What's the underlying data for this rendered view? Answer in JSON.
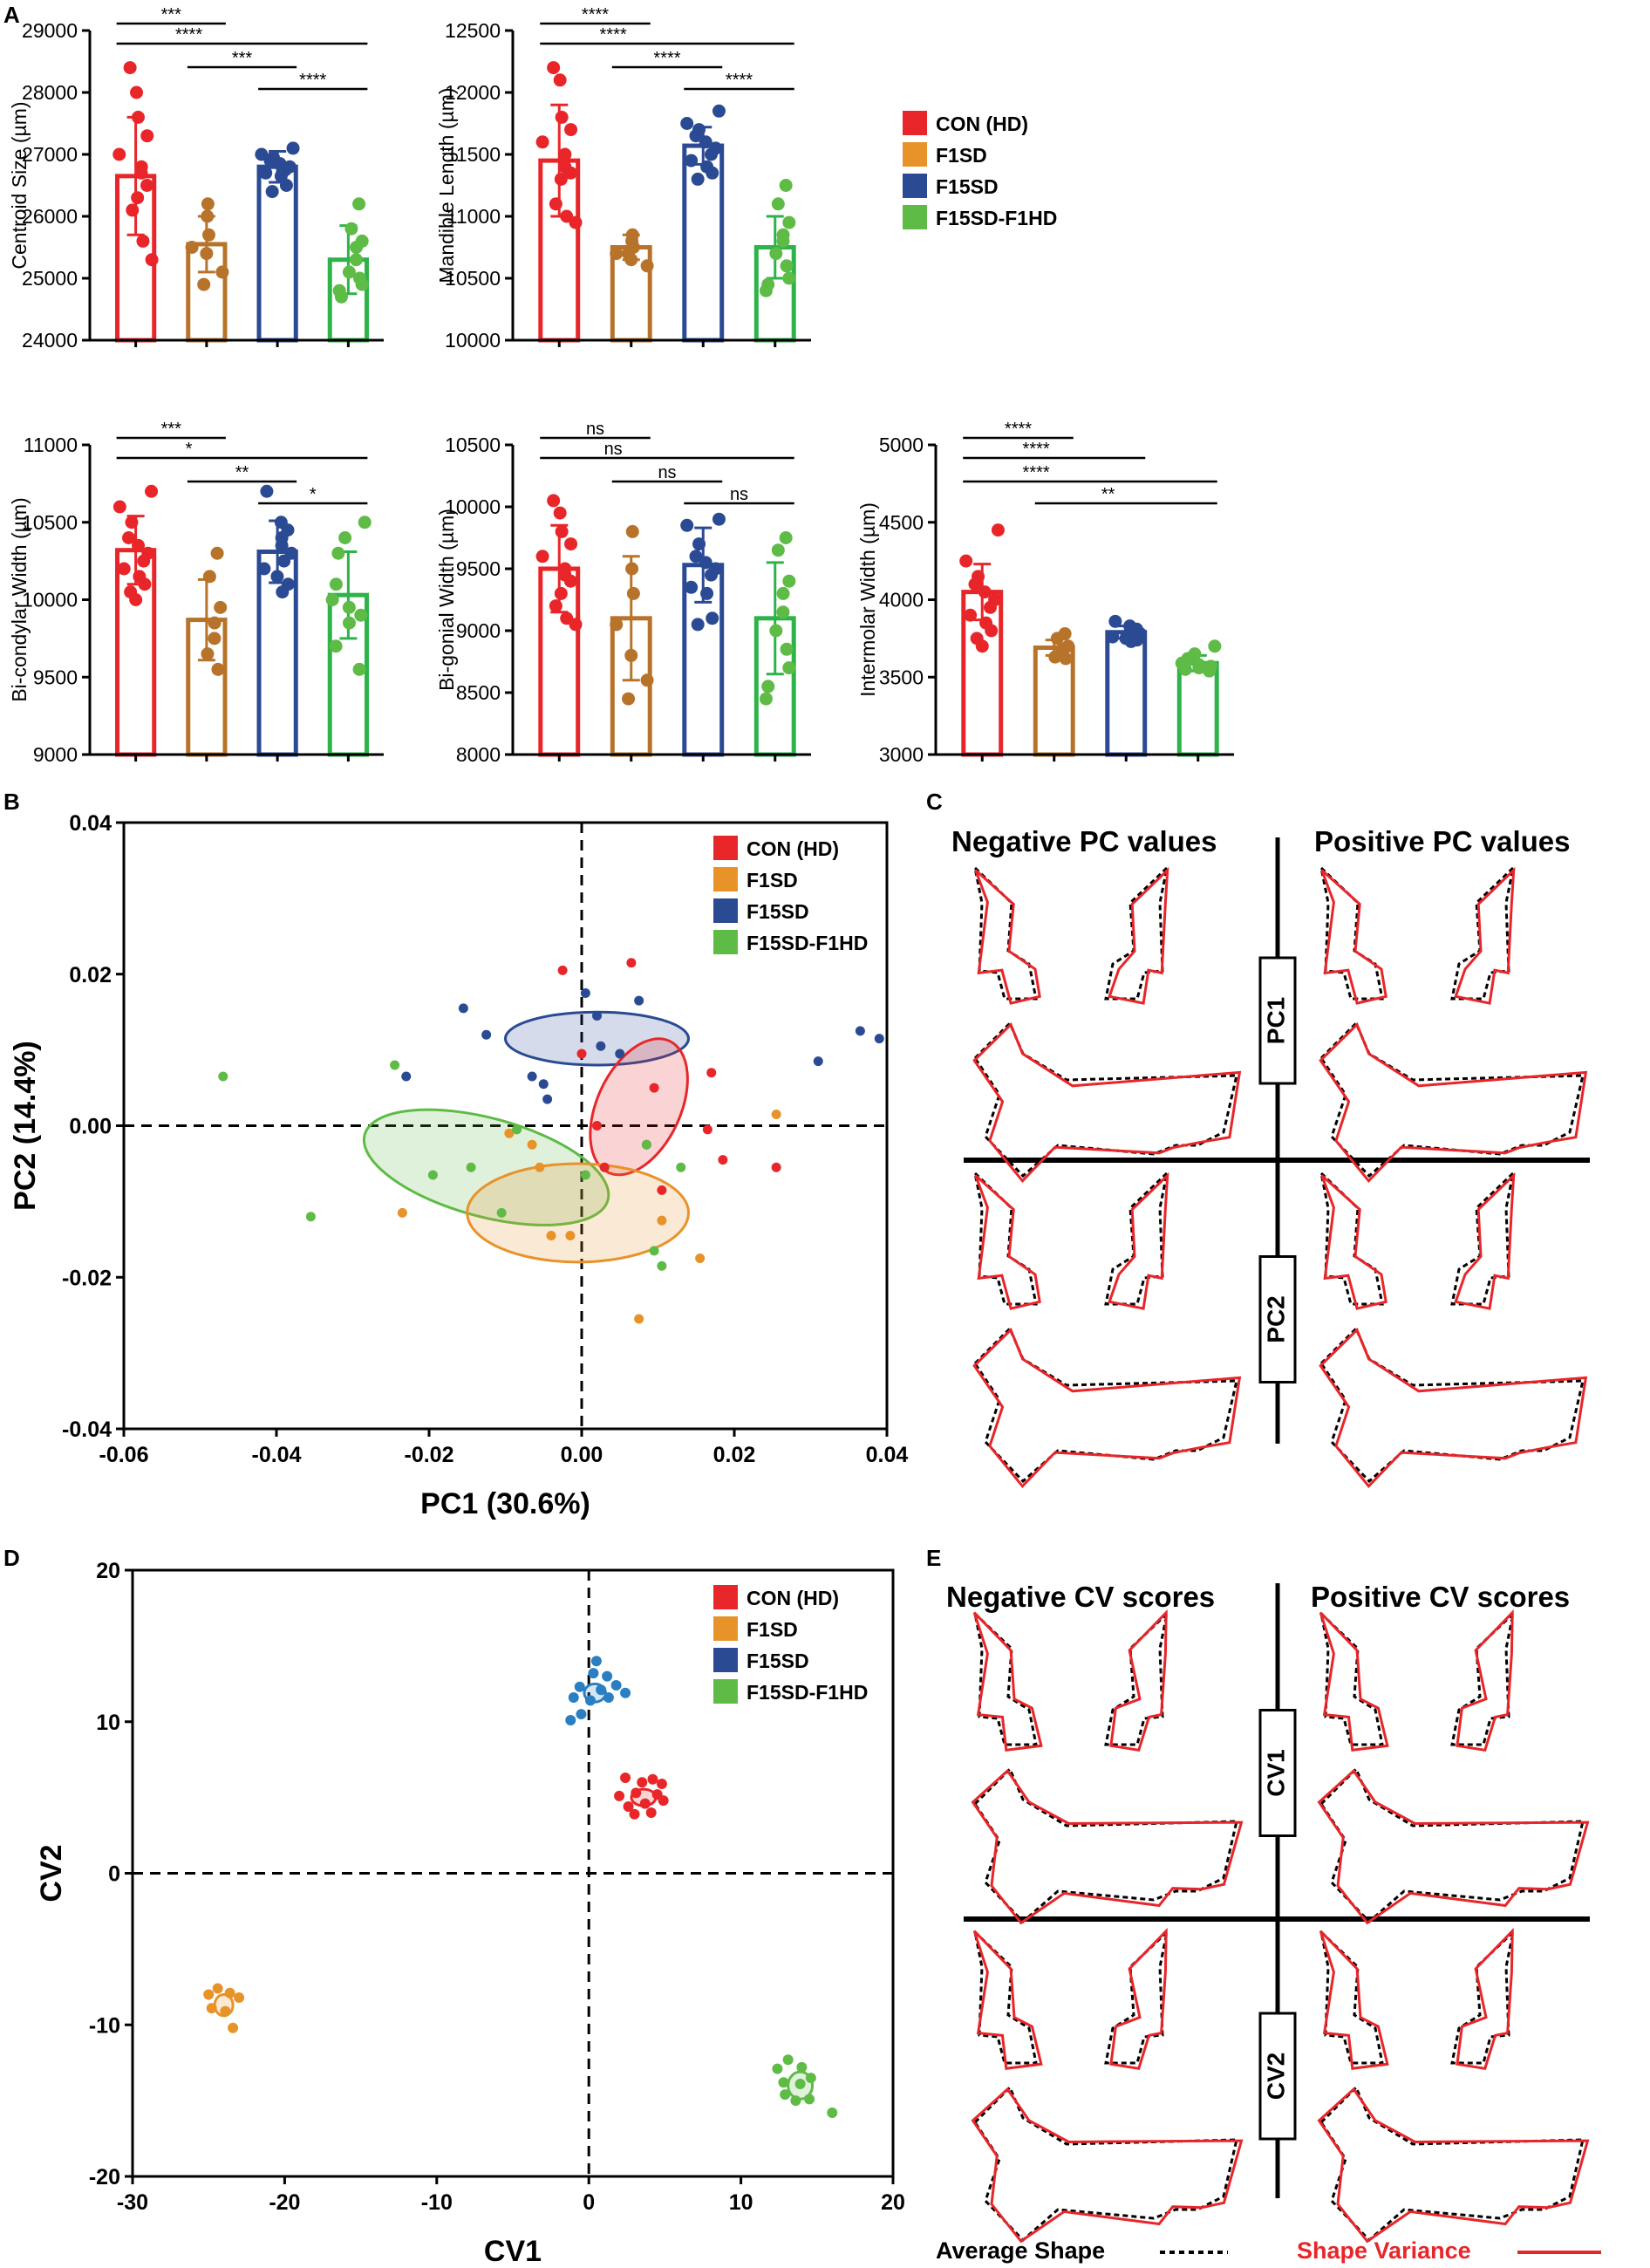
{
  "colors": {
    "con": "#e8262a",
    "f1sd": "#e8922a",
    "f15sd": "#2b4a94",
    "f15sdf1hd": "#5dbb46",
    "con_bar": "#e8262a",
    "f1sd_bar": "#b8732a",
    "f15sd_bar": "#2b4a94",
    "f15sdf1hd_bar": "#2db34a",
    "f15sd_cva": "#2a7fc2",
    "variance": "#e8262a"
  },
  "panel_labels": {
    "a": "A",
    "b": "B",
    "c": "C",
    "d": "D",
    "e": "E"
  },
  "legend": {
    "entries": [
      {
        "key": "con",
        "label": "CON (HD)"
      },
      {
        "key": "f1sd",
        "label": "F1SD"
      },
      {
        "key": "f15sd",
        "label": "F15SD"
      },
      {
        "key": "f15sdf1hd",
        "label": "F15SD-F1HD"
      }
    ]
  },
  "shape_panels": {
    "pc": {
      "neg_header": "Negative PC values",
      "pos_header": "Positive PC values",
      "row1": "PC1",
      "row2": "PC2"
    },
    "cv": {
      "neg_header": "Negative CV scores",
      "pos_header": "Positive CV scores",
      "row1": "CV1",
      "row2": "CV2"
    },
    "footer_average": "Average Shape",
    "footer_variance": "Shape Variance"
  },
  "chart_data": [
    {
      "type": "bar",
      "id": "centroid",
      "ylabel": "Centroid Size (µm)",
      "ylim": [
        24000,
        29000
      ],
      "yticks": [
        24000,
        25000,
        26000,
        27000,
        28000,
        29000
      ],
      "categories": [
        "CON (HD)",
        "F1SD",
        "F15SD",
        "F15SD-F1HD"
      ],
      "values": [
        26650,
        25550,
        26800,
        25300
      ],
      "sd": [
        950,
        450,
        250,
        550
      ],
      "points": [
        [
          28400,
          28000,
          27600,
          27300,
          27000,
          26800,
          26700,
          26500,
          26300,
          26100,
          25600,
          25300
        ],
        [
          26200,
          26000,
          25700,
          25500,
          25400,
          25100,
          24900
        ],
        [
          27100,
          27000,
          26950,
          26900,
          26850,
          26800,
          26750,
          26700,
          26650,
          26500,
          26400
        ],
        [
          26200,
          25800,
          25600,
          25500,
          25300,
          25100,
          25000,
          24900,
          24800,
          24700
        ]
      ],
      "significance": [
        {
          "from": 0,
          "to": 1,
          "label": "***"
        },
        {
          "from": 0,
          "to": 3,
          "label": "****"
        },
        {
          "from": 1,
          "to": 2,
          "label": "***"
        },
        {
          "from": 2,
          "to": 3,
          "label": "****"
        }
      ]
    },
    {
      "type": "bar",
      "id": "mandible",
      "ylabel": "Mandible Length (µm)",
      "ylim": [
        10000,
        12500
      ],
      "yticks": [
        10000,
        10500,
        11000,
        11500,
        12000,
        12500
      ],
      "categories": [
        "CON (HD)",
        "F1SD",
        "F15SD",
        "F15SD-F1HD"
      ],
      "values": [
        11450,
        10750,
        11570,
        10750
      ],
      "sd": [
        450,
        100,
        150,
        250
      ],
      "points": [
        [
          12200,
          12100,
          11800,
          11700,
          11600,
          11500,
          11400,
          11350,
          11300,
          11100,
          11000,
          10950
        ],
        [
          10850,
          10800,
          10750,
          10700,
          10650,
          10600,
          10700
        ],
        [
          11850,
          11750,
          11700,
          11650,
          11600,
          11550,
          11500,
          11450,
          11400,
          11350,
          11300
        ],
        [
          11250,
          11100,
          10950,
          10850,
          10800,
          10700,
          10600,
          10500,
          10400,
          10450
        ]
      ],
      "significance": [
        {
          "from": 0,
          "to": 1,
          "label": "****"
        },
        {
          "from": 0,
          "to": 3,
          "label": "****"
        },
        {
          "from": 1,
          "to": 2,
          "label": "****"
        },
        {
          "from": 2,
          "to": 3,
          "label": "****"
        }
      ]
    },
    {
      "type": "bar",
      "id": "bicondylar",
      "ylabel": "Bi-condylar Width (µm)",
      "ylim": [
        9000,
        11000
      ],
      "yticks": [
        9000,
        9500,
        10000,
        10500,
        11000
      ],
      "categories": [
        "CON (HD)",
        "F1SD",
        "F15SD",
        "F15SD-F1HD"
      ],
      "values": [
        10320,
        9870,
        10310,
        10030
      ],
      "sd": [
        220,
        260,
        200,
        280
      ],
      "points": [
        [
          10700,
          10600,
          10500,
          10400,
          10350,
          10300,
          10250,
          10200,
          10150,
          10100,
          10050,
          10000
        ],
        [
          10300,
          10150,
          9950,
          9850,
          9750,
          9650,
          9550
        ],
        [
          10700,
          10500,
          10450,
          10400,
          10350,
          10300,
          10250,
          10200,
          10150,
          10100,
          10050
        ],
        [
          10500,
          10400,
          10300,
          10100,
          10000,
          9950,
          9900,
          9850,
          9700,
          9550
        ]
      ],
      "significance": [
        {
          "from": 0,
          "to": 1,
          "label": "***"
        },
        {
          "from": 0,
          "to": 3,
          "label": "*"
        },
        {
          "from": 1,
          "to": 2,
          "label": "**"
        },
        {
          "from": 2,
          "to": 3,
          "label": "*"
        }
      ]
    },
    {
      "type": "bar",
      "id": "bigonial",
      "ylabel": "Bi-gonial Width (µm)",
      "ylim": [
        8000,
        10500
      ],
      "yticks": [
        8000,
        8500,
        9000,
        9500,
        10000,
        10500
      ],
      "categories": [
        "CON (HD)",
        "F1SD",
        "F15SD",
        "F15SD-F1HD"
      ],
      "values": [
        9500,
        9100,
        9530,
        9100
      ],
      "sd": [
        350,
        500,
        300,
        450
      ],
      "points": [
        [
          10050,
          9950,
          9800,
          9700,
          9600,
          9500,
          9450,
          9400,
          9300,
          9200,
          9100,
          9050
        ],
        [
          9800,
          9500,
          9300,
          9050,
          8800,
          8600,
          8450
        ],
        [
          9900,
          9850,
          9700,
          9600,
          9550,
          9500,
          9450,
          9350,
          9300,
          9100,
          9050
        ],
        [
          9750,
          9650,
          9400,
          9300,
          9150,
          9000,
          8850,
          8700,
          8450,
          8550
        ]
      ],
      "significance": [
        {
          "from": 0,
          "to": 1,
          "label": "ns"
        },
        {
          "from": 0,
          "to": 3,
          "label": "ns"
        },
        {
          "from": 1,
          "to": 2,
          "label": "ns"
        },
        {
          "from": 2,
          "to": 3,
          "label": "ns"
        }
      ]
    },
    {
      "type": "bar",
      "id": "intermolar",
      "ylabel": "Intermolar Width (µm)",
      "ylim": [
        3000,
        5000
      ],
      "yticks": [
        3000,
        3500,
        4000,
        4500,
        5000
      ],
      "categories": [
        "CON (HD)",
        "F1SD",
        "F15SD",
        "F15SD-F1HD"
      ],
      "values": [
        4050,
        3690,
        3790,
        3590
      ],
      "sd": [
        180,
        50,
        40,
        50
      ],
      "points": [
        [
          4450,
          4250,
          4150,
          4100,
          4050,
          4000,
          3950,
          3900,
          3850,
          3800,
          3750,
          3700
        ],
        [
          3780,
          3750,
          3700,
          3680,
          3650,
          3630,
          3620
        ],
        [
          3860,
          3830,
          3810,
          3800,
          3790,
          3780,
          3770,
          3760,
          3750,
          3740,
          3730
        ],
        [
          3700,
          3650,
          3620,
          3600,
          3590,
          3580,
          3570,
          3560,
          3550,
          3540
        ]
      ],
      "significance": [
        {
          "from": 0,
          "to": 1,
          "label": "****"
        },
        {
          "from": 0,
          "to": 2,
          "label": "****"
        },
        {
          "from": 0,
          "to": 3,
          "label": "****"
        },
        {
          "from": 1,
          "to": 3,
          "label": "**"
        }
      ]
    },
    {
      "type": "scatter",
      "id": "pca",
      "xlabel": "PC1 (30.6%)",
      "ylabel": "PC2 (14.4%)",
      "xlim": [
        -0.06,
        0.04
      ],
      "ylim": [
        -0.04,
        0.04
      ],
      "xticks": [
        -0.06,
        -0.04,
        -0.02,
        0.0,
        0.02,
        0.04
      ],
      "yticks": [
        -0.04,
        -0.02,
        0.0,
        0.02,
        0.04
      ],
      "xtick_labels": [
        "-0.06",
        "-0.04",
        "-0.02",
        "0.00",
        "0.02",
        "0.04"
      ],
      "ytick_labels": [
        "-0.04",
        "-0.02",
        "0.00",
        "0.02",
        "0.04"
      ],
      "series": [
        {
          "key": "con",
          "name": "CON (HD)",
          "points": [
            [
              -0.0025,
              0.0205
            ],
            [
              0.0065,
              0.0215
            ],
            [
              0.0,
              0.0095
            ],
            [
              0.002,
              0.0
            ],
            [
              0.003,
              -0.0055
            ],
            [
              0.0085,
              -0.0025
            ],
            [
              0.0095,
              0.005
            ],
            [
              0.017,
              0.007
            ],
            [
              0.0165,
              -0.0005
            ],
            [
              0.0185,
              -0.0045
            ],
            [
              0.0105,
              -0.0085
            ],
            [
              0.0255,
              -0.0055
            ]
          ]
        },
        {
          "key": "f1sd",
          "name": "F1SD",
          "points": [
            [
              -0.0235,
              -0.0115
            ],
            [
              -0.0055,
              -0.0055
            ],
            [
              -0.004,
              -0.0145
            ],
            [
              -0.0015,
              -0.0145
            ],
            [
              0.0105,
              -0.0125
            ],
            [
              0.0075,
              -0.0255
            ],
            [
              0.0155,
              -0.0175
            ],
            [
              0.0255,
              0.0015
            ],
            [
              -0.0065,
              -0.0025
            ],
            [
              -0.0095,
              -0.001
            ]
          ]
        },
        {
          "key": "f15sd",
          "name": "F15SD",
          "points": [
            [
              -0.0155,
              0.0155
            ],
            [
              0.0005,
              0.0175
            ],
            [
              0.002,
              0.0145
            ],
            [
              0.0075,
              0.0165
            ],
            [
              -0.0125,
              0.012
            ],
            [
              0.005,
              0.0095
            ],
            [
              0.0025,
              0.0105
            ],
            [
              -0.0065,
              0.0065
            ],
            [
              -0.005,
              0.0055
            ],
            [
              -0.0045,
              0.0035
            ],
            [
              -0.023,
              0.0065
            ],
            [
              0.031,
              0.0085
            ],
            [
              0.0365,
              0.0125
            ],
            [
              0.039,
              0.0115
            ]
          ]
        },
        {
          "key": "f15sdf1hd",
          "name": "F15SD-F1HD",
          "points": [
            [
              -0.047,
              0.0065
            ],
            [
              -0.0355,
              -0.012
            ],
            [
              -0.0245,
              0.008
            ],
            [
              -0.0195,
              -0.0065
            ],
            [
              -0.0145,
              -0.0055
            ],
            [
              -0.0105,
              -0.0115
            ],
            [
              -0.0085,
              -0.0005
            ],
            [
              0.0005,
              -0.0065
            ],
            [
              0.0085,
              -0.0025
            ],
            [
              0.0095,
              -0.0165
            ],
            [
              0.0105,
              -0.0185
            ],
            [
              0.013,
              -0.0055
            ]
          ]
        }
      ],
      "ellipses": [
        {
          "key": "f15sd",
          "cx": 0.002,
          "cy": 0.0115,
          "rx": 0.012,
          "ry": 0.0035,
          "angle": 0
        },
        {
          "key": "con",
          "cx": 0.0075,
          "cy": 0.0025,
          "rx": 0.0095,
          "ry": 0.0055,
          "angle": 65
        },
        {
          "key": "f15sdf1hd",
          "cx": -0.0125,
          "cy": -0.0055,
          "rx": 0.0165,
          "ry": 0.0065,
          "angle": -15
        },
        {
          "key": "f1sd",
          "cx": -0.0005,
          "cy": -0.0115,
          "rx": 0.0145,
          "ry": 0.0065,
          "angle": 0
        }
      ]
    },
    {
      "type": "scatter",
      "id": "cva",
      "xlabel": "CV1",
      "ylabel": "CV2",
      "xlim": [
        -30,
        20
      ],
      "ylim": [
        -20,
        20
      ],
      "xticks": [
        -30,
        -20,
        -10,
        0,
        10,
        20
      ],
      "yticks": [
        -20,
        -10,
        0,
        10,
        20
      ],
      "xtick_labels": [
        "-30",
        "-20",
        "-10",
        "0",
        "10",
        "20"
      ],
      "ytick_labels": [
        "-20",
        "-10",
        "0",
        "10",
        "20"
      ],
      "series": [
        {
          "key": "con",
          "name": "CON (HD)",
          "points": [
            [
              2.4,
              6.3
            ],
            [
              3.5,
              6.0
            ],
            [
              4.2,
              6.2
            ],
            [
              4.8,
              5.9
            ],
            [
              2.0,
              5.1
            ],
            [
              3.1,
              5.3
            ],
            [
              4.5,
              5.2
            ],
            [
              2.6,
              4.4
            ],
            [
              3.7,
              4.6
            ],
            [
              4.9,
              4.8
            ],
            [
              3.0,
              3.9
            ],
            [
              4.1,
              4.0
            ]
          ]
        },
        {
          "key": "f1sd",
          "name": "F1SD",
          "points": [
            [
              -25.0,
              -8.0
            ],
            [
              -24.4,
              -7.6
            ],
            [
              -23.6,
              -7.9
            ],
            [
              -23.0,
              -8.2
            ],
            [
              -24.8,
              -8.9
            ],
            [
              -23.9,
              -9.1
            ],
            [
              -23.4,
              -10.2
            ]
          ]
        },
        {
          "key": "f15sd",
          "name": "F15SD",
          "points": [
            [
              0.5,
              14.0
            ],
            [
              0.3,
              13.2
            ],
            [
              1.2,
              13.0
            ],
            [
              -0.6,
              12.3
            ],
            [
              0.8,
              12.1
            ],
            [
              1.8,
              12.4
            ],
            [
              -1.0,
              11.6
            ],
            [
              0.1,
              11.4
            ],
            [
              1.3,
              11.6
            ],
            [
              2.4,
              11.9
            ],
            [
              -0.5,
              10.5
            ],
            [
              -1.2,
              10.1
            ]
          ]
        },
        {
          "key": "f15sdf1hd",
          "name": "F15SD-F1HD",
          "points": [
            [
              13.1,
              -12.3
            ],
            [
              12.4,
              -12.9
            ],
            [
              14.0,
              -12.8
            ],
            [
              12.8,
              -13.8
            ],
            [
              13.9,
              -13.9
            ],
            [
              14.6,
              -13.5
            ],
            [
              12.9,
              -14.6
            ],
            [
              13.6,
              -15.0
            ],
            [
              14.5,
              -14.9
            ],
            [
              16.0,
              -15.8
            ]
          ]
        }
      ],
      "ellipses": [
        {
          "key": "con",
          "cx": 3.6,
          "cy": 5.0,
          "rx": 0.8,
          "ry": 0.55,
          "angle": 0
        },
        {
          "key": "f1sd",
          "cx": -24.0,
          "cy": -8.7,
          "rx": 0.6,
          "ry": 0.7,
          "angle": 0
        },
        {
          "key": "f15sd",
          "cx": 0.4,
          "cy": 11.9,
          "rx": 0.7,
          "ry": 0.6,
          "angle": 0
        },
        {
          "key": "f15sdf1hd",
          "cx": 13.9,
          "cy": -14.0,
          "rx": 0.8,
          "ry": 0.9,
          "angle": 0
        }
      ]
    }
  ]
}
